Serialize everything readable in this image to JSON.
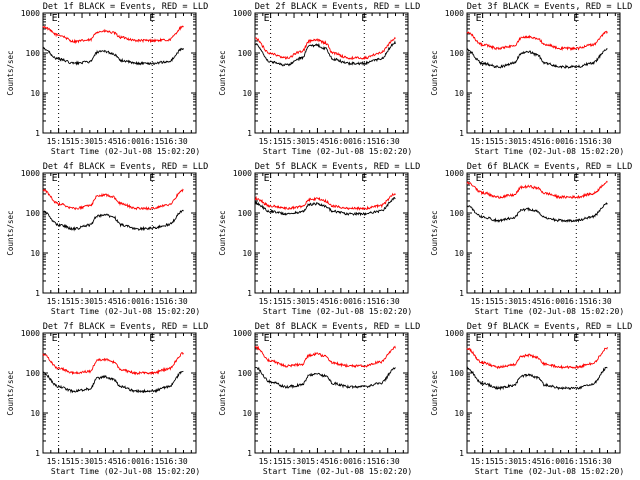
{
  "x_tick_labels": [
    "15:15",
    "15:30",
    "15:45",
    "16:00",
    "16:15",
    "16:30"
  ],
  "y_tick_labels": [
    "1",
    "10",
    "100",
    "1000"
  ],
  "ylabel": "Counts/sec",
  "xlabel": "Start Time (02-Jul-08 15:02:20)",
  "marker_labels": [
    "E",
    "E"
  ],
  "colors": {
    "events": "#000000",
    "lld": "#ff0000",
    "axes": "#000000",
    "background": "#ffffff"
  },
  "chart_data": [
    {
      "type": "line",
      "title": "Det 1f BLACK = Events, RED = LLD",
      "ylim": [
        1,
        1000
      ],
      "log_y": true,
      "x": [
        "15:05",
        "15:15",
        "15:25",
        "15:35",
        "15:40",
        "15:45",
        "15:50",
        "15:55",
        "16:05",
        "16:15",
        "16:25",
        "16:35"
      ],
      "series": [
        {
          "values": [
            450,
            280,
            195,
            210,
            340,
            350,
            320,
            245,
            205,
            205,
            210,
            450
          ],
          "color": "#ff0000"
        },
        {
          "values": [
            130,
            70,
            55,
            60,
            105,
            110,
            95,
            65,
            55,
            55,
            60,
            130
          ],
          "color": "#000000"
        }
      ]
    },
    {
      "type": "line",
      "title": "Det 2f BLACK = Events, RED = LLD",
      "ylim": [
        1,
        1000
      ],
      "log_y": true,
      "x": [
        "15:05",
        "15:15",
        "15:25",
        "15:35",
        "15:40",
        "15:45",
        "15:50",
        "15:55",
        "16:05",
        "16:15",
        "16:25",
        "16:35"
      ],
      "series": [
        {
          "values": [
            230,
            95,
            75,
            110,
            200,
            210,
            180,
            100,
            75,
            75,
            100,
            230
          ],
          "color": "#ff0000"
        },
        {
          "values": [
            170,
            60,
            50,
            75,
            150,
            155,
            130,
            70,
            55,
            55,
            70,
            180
          ],
          "color": "#000000"
        }
      ]
    },
    {
      "type": "line",
      "title": "Det 3f BLACK = Events, RED = LLD",
      "ylim": [
        1,
        1000
      ],
      "log_y": true,
      "x": [
        "15:05",
        "15:15",
        "15:25",
        "15:35",
        "15:40",
        "15:45",
        "15:50",
        "15:55",
        "16:05",
        "16:15",
        "16:25",
        "16:35"
      ],
      "series": [
        {
          "values": [
            330,
            160,
            130,
            150,
            240,
            260,
            230,
            165,
            130,
            130,
            160,
            330
          ],
          "color": "#ff0000"
        },
        {
          "values": [
            120,
            55,
            45,
            55,
            100,
            105,
            90,
            55,
            45,
            45,
            55,
            125
          ],
          "color": "#000000"
        }
      ]
    },
    {
      "type": "line",
      "title": "Det 4f BLACK = Events, RED = LLD",
      "ylim": [
        1,
        1000
      ],
      "log_y": true,
      "x": [
        "15:05",
        "15:15",
        "15:25",
        "15:35",
        "15:40",
        "15:45",
        "15:50",
        "15:55",
        "16:05",
        "16:15",
        "16:25",
        "16:35"
      ],
      "series": [
        {
          "values": [
            370,
            170,
            130,
            150,
            270,
            280,
            250,
            170,
            130,
            130,
            160,
            370
          ],
          "color": "#ff0000"
        },
        {
          "values": [
            110,
            50,
            40,
            50,
            85,
            90,
            80,
            50,
            40,
            42,
            50,
            115
          ],
          "color": "#000000"
        }
      ]
    },
    {
      "type": "line",
      "title": "Det 5f BLACK = Events, RED = LLD",
      "ylim": [
        1,
        1000
      ],
      "log_y": true,
      "x": [
        "15:05",
        "15:15",
        "15:25",
        "15:35",
        "15:40",
        "15:45",
        "15:50",
        "15:55",
        "16:05",
        "16:15",
        "16:25",
        "16:35"
      ],
      "series": [
        {
          "values": [
            230,
            150,
            130,
            145,
            215,
            225,
            200,
            150,
            130,
            130,
            150,
            300
          ],
          "color": "#ff0000"
        },
        {
          "values": [
            180,
            110,
            95,
            105,
            165,
            170,
            150,
            110,
            95,
            95,
            110,
            230
          ],
          "color": "#000000"
        }
      ]
    },
    {
      "type": "line",
      "title": "Det 6f BLACK = Events, RED = LLD",
      "ylim": [
        1,
        1000
      ],
      "log_y": true,
      "x": [
        "15:05",
        "15:15",
        "15:25",
        "15:35",
        "15:40",
        "15:45",
        "15:50",
        "15:55",
        "16:05",
        "16:15",
        "16:25",
        "16:35"
      ],
      "series": [
        {
          "values": [
            580,
            320,
            250,
            280,
            440,
            460,
            420,
            310,
            250,
            250,
            300,
            580
          ],
          "color": "#ff0000"
        },
        {
          "values": [
            150,
            80,
            65,
            75,
            120,
            125,
            110,
            75,
            65,
            65,
            80,
            170
          ],
          "color": "#000000"
        }
      ]
    },
    {
      "type": "line",
      "title": "Det 7f BLACK = Events, RED = LLD",
      "ylim": [
        1,
        1000
      ],
      "log_y": true,
      "x": [
        "15:05",
        "15:15",
        "15:25",
        "15:35",
        "15:40",
        "15:45",
        "15:50",
        "15:55",
        "16:05",
        "16:15",
        "16:25",
        "16:35"
      ],
      "series": [
        {
          "values": [
            290,
            130,
            100,
            110,
            210,
            220,
            190,
            120,
            100,
            100,
            125,
            310
          ],
          "color": "#ff0000"
        },
        {
          "values": [
            100,
            45,
            35,
            40,
            75,
            80,
            70,
            45,
            35,
            35,
            45,
            110
          ],
          "color": "#000000"
        }
      ]
    },
    {
      "type": "line",
      "title": "Det 8f BLACK = Events, RED = LLD",
      "ylim": [
        1,
        1000
      ],
      "log_y": true,
      "x": [
        "15:05",
        "15:15",
        "15:25",
        "15:35",
        "15:40",
        "15:45",
        "15:50",
        "15:55",
        "16:05",
        "16:15",
        "16:25",
        "16:35"
      ],
      "series": [
        {
          "values": [
            450,
            200,
            150,
            165,
            280,
            300,
            260,
            175,
            150,
            150,
            185,
            430
          ],
          "color": "#ff0000"
        },
        {
          "values": [
            140,
            60,
            45,
            50,
            90,
            95,
            85,
            55,
            45,
            45,
            55,
            130
          ],
          "color": "#000000"
        }
      ]
    },
    {
      "type": "line",
      "title": "Det 9f BLACK = Events, RED = LLD",
      "ylim": [
        1,
        1000
      ],
      "log_y": true,
      "x": [
        "15:05",
        "15:15",
        "15:25",
        "15:35",
        "15:40",
        "15:45",
        "15:50",
        "15:55",
        "16:05",
        "16:15",
        "16:25",
        "16:35"
      ],
      "series": [
        {
          "values": [
            410,
            180,
            140,
            160,
            260,
            280,
            240,
            165,
            140,
            140,
            170,
            420
          ],
          "color": "#ff0000"
        },
        {
          "values": [
            130,
            55,
            42,
            48,
            85,
            90,
            78,
            50,
            42,
            42,
            52,
            135
          ],
          "color": "#000000"
        }
      ]
    }
  ]
}
